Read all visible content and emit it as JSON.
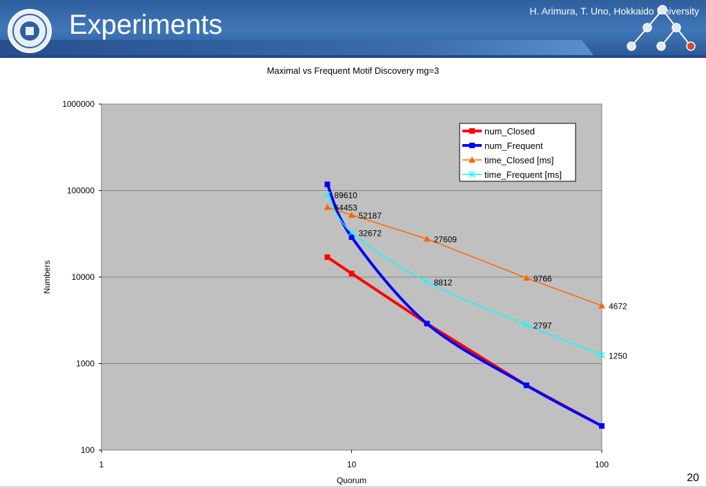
{
  "slide": {
    "title": "Experiments",
    "authors": "H. Arimura, T. Uno, Hokkaido University",
    "page_number": "20"
  },
  "colors": {
    "header": "#2f5f9e",
    "plot_bg": "#c0c0c0",
    "num_closed": "#ff0000",
    "num_frequent": "#0000ff",
    "time_closed": "#ff6600",
    "time_frequent": "#00ffff"
  },
  "chart_data": {
    "type": "line",
    "title": "Maximal vs Frequent Motif Discovery mg=3",
    "xlabel": "Quorum",
    "ylabel": "Numbers",
    "x_scale": "log",
    "y_scale": "log",
    "xlim": [
      1,
      100
    ],
    "ylim": [
      100,
      1000000
    ],
    "x_ticks": [
      "1",
      "10",
      "100"
    ],
    "y_ticks": [
      "100",
      "1000",
      "10000",
      "100000",
      "1000000"
    ],
    "grid": "horizontal",
    "legend_position": "top-right",
    "series": [
      {
        "name": "num_Closed",
        "marker": "square",
        "smooth": false,
        "x": [
          8,
          10,
          20,
          50,
          100
        ],
        "y": [
          17000,
          11000,
          2900,
          560,
          190
        ],
        "labels": []
      },
      {
        "name": "num_Frequent",
        "marker": "square",
        "smooth": true,
        "x": [
          8,
          10,
          20,
          50,
          100
        ],
        "y": [
          118000,
          29000,
          2900,
          560,
          190
        ],
        "labels": []
      },
      {
        "name": "time_Closed [ms]",
        "marker": "triangle",
        "smooth": false,
        "x": [
          8,
          10,
          20,
          50,
          100
        ],
        "y": [
          64453,
          52187,
          27609,
          9766,
          4672
        ],
        "labels": [
          "64453",
          "52187",
          "27609",
          "9766",
          "4672"
        ]
      },
      {
        "name": "time_Frequent [ms]",
        "marker": "x",
        "smooth": true,
        "x": [
          8,
          10,
          20,
          50,
          100
        ],
        "y": [
          89610,
          32672,
          8812,
          2797,
          1250
        ],
        "labels": [
          "89610",
          "32672",
          "8812",
          "2797",
          "1250"
        ]
      }
    ]
  }
}
